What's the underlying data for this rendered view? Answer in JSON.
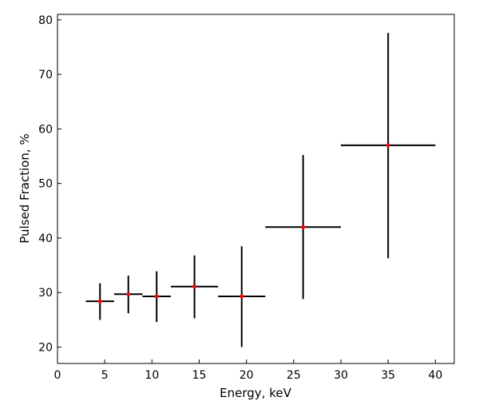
{
  "chart_data": {
    "type": "scatter",
    "title": "",
    "xlabel": "Energy, keV",
    "ylabel": "Pulsed Fraction, %",
    "xlim": [
      0,
      42
    ],
    "ylim": [
      17,
      81
    ],
    "xticks": [
      0,
      5,
      10,
      15,
      20,
      25,
      30,
      35,
      40
    ],
    "yticks": [
      20,
      30,
      40,
      50,
      60,
      70,
      80
    ],
    "grid": false,
    "legend": "none",
    "colors": {
      "errorbar": "#000000",
      "point": "#ff0000"
    },
    "series": [
      {
        "points": [
          {
            "x": 4.5,
            "y": 28.4,
            "xlo": 3,
            "xhi": 6,
            "ylo": 25.0,
            "yhi": 31.7
          },
          {
            "x": 7.5,
            "y": 29.7,
            "xlo": 6,
            "xhi": 9,
            "ylo": 26.2,
            "yhi": 33.1
          },
          {
            "x": 10.5,
            "y": 29.3,
            "xlo": 9,
            "xhi": 12,
            "ylo": 24.6,
            "yhi": 33.9
          },
          {
            "x": 14.5,
            "y": 31.1,
            "xlo": 12,
            "xhi": 17,
            "ylo": 25.3,
            "yhi": 36.8
          },
          {
            "x": 19.5,
            "y": 29.3,
            "xlo": 17,
            "xhi": 22,
            "ylo": 20.0,
            "yhi": 38.5
          },
          {
            "x": 26,
            "y": 42.0,
            "xlo": 22,
            "xhi": 30,
            "ylo": 28.8,
            "yhi": 55.2
          },
          {
            "x": 35,
            "y": 57.0,
            "xlo": 30,
            "xhi": 40,
            "ylo": 36.3,
            "yhi": 77.6
          }
        ]
      }
    ]
  }
}
